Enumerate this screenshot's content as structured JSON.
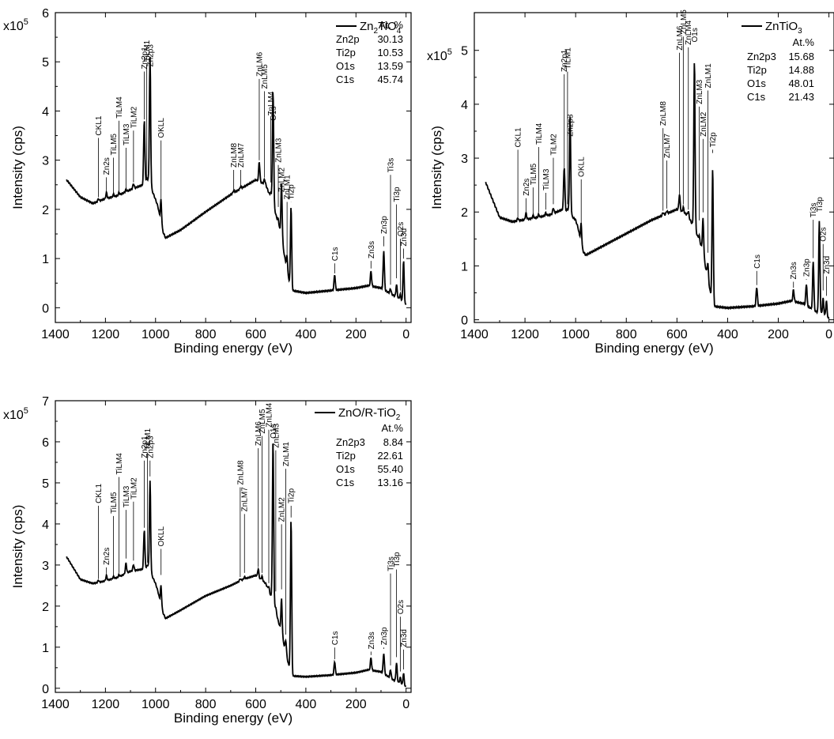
{
  "chart_data": [
    {
      "type": "line",
      "legend": {
        "prefix": "Zn",
        "sub1": "2",
        "mid": "TiO",
        "sub2": "4"
      },
      "xlabel": "Binding energy (eV)",
      "ylabel": "Intensity (cps)",
      "y_multiplier": {
        "base": "x10",
        "exp": "5"
      },
      "xlim": [
        1400,
        -20
      ],
      "ylim": [
        -0.3,
        6
      ],
      "x_ticks": [
        1400,
        1200,
        1000,
        800,
        600,
        400,
        200,
        0
      ],
      "y_ticks": [
        0,
        1,
        2,
        3,
        4,
        5,
        6
      ],
      "composition": {
        "header": "At. %",
        "rows": [
          {
            "element": "Zn2p",
            "value": "30.13"
          },
          {
            "element": "Ti2p",
            "value": "10.53"
          },
          {
            "element": "O1s",
            "value": "13.59"
          },
          {
            "element": "C1s",
            "value": "45.74"
          }
        ]
      },
      "baseline": [
        [
          1355,
          2.6
        ],
        [
          1300,
          2.25
        ],
        [
          1250,
          2.12
        ],
        [
          1210,
          2.2
        ],
        [
          1150,
          2.28
        ],
        [
          1100,
          2.4
        ],
        [
          1050,
          2.5
        ],
        [
          1030,
          2.6
        ],
        [
          1000,
          2.2
        ],
        [
          990,
          2.05
        ],
        [
          975,
          1.6
        ],
        [
          960,
          1.42
        ],
        [
          900,
          1.58
        ],
        [
          800,
          1.95
        ],
        [
          700,
          2.3
        ],
        [
          650,
          2.45
        ],
        [
          600,
          2.6
        ],
        [
          560,
          2.5
        ],
        [
          530,
          2.1
        ],
        [
          500,
          1.5
        ],
        [
          470,
          0.6
        ],
        [
          455,
          0.35
        ],
        [
          400,
          0.3
        ],
        [
          300,
          0.35
        ],
        [
          200,
          0.4
        ],
        [
          150,
          0.45
        ],
        [
          100,
          0.4
        ],
        [
          50,
          0.25
        ],
        [
          25,
          0.18
        ],
        [
          10,
          0.1
        ],
        [
          0,
          0.05
        ]
      ],
      "peaks": [
        {
          "name": "CKL1",
          "x": 1228,
          "top": 2.2,
          "h": 0.05,
          "label_y": 3.5
        },
        {
          "name": "Zn2s",
          "x": 1196,
          "top": 2.35,
          "h": 0.12,
          "label_y": 2.7
        },
        {
          "name": "TiLM5",
          "x": 1168,
          "top": 2.25,
          "h": 0.05,
          "label_y": 3.1
        },
        {
          "name": "TiLM4",
          "x": 1146,
          "top": 2.3,
          "h": 0.05,
          "label_y": 3.85
        },
        {
          "name": "TiLM3",
          "x": 1118,
          "top": 2.35,
          "h": 0.05,
          "label_y": 3.3
        },
        {
          "name": "TiLM2",
          "x": 1088,
          "top": 2.5,
          "h": 0.1,
          "label_y": 3.65
        },
        {
          "name": "Zn2p1",
          "x": 1045,
          "top": 3.78,
          "h": 1.3,
          "label_y": 4.85
        },
        {
          "name": "TiLM1",
          "x": 1035,
          "top": 2.55,
          "h": 0.05,
          "label_y": 5.0
        },
        {
          "name": "Zn2p3",
          "x": 1022,
          "top": 5.18,
          "h": 2.6,
          "label_y": 4.9
        },
        {
          "name": "OKLL",
          "x": 978,
          "top": 2.1,
          "h": 0.5,
          "label_y": 3.45
        },
        {
          "name": "ZnLM8",
          "x": 688,
          "top": 2.35,
          "h": 0.05,
          "label_y": 2.85
        },
        {
          "name": "ZnLM7",
          "x": 660,
          "top": 2.42,
          "h": 0.05,
          "label_y": 2.85
        },
        {
          "name": "ZnLM6",
          "x": 586,
          "top": 2.95,
          "h": 0.4,
          "label_y": 4.7
        },
        {
          "name": "ZnLM5",
          "x": 565,
          "top": 2.6,
          "h": 0.1,
          "label_y": 4.45
        },
        {
          "name": "ZnLM4",
          "x": 540,
          "top": 2.5,
          "h": 0.1,
          "label_y": 3.9
        },
        {
          "name": "O1s",
          "x": 531,
          "top": 4.58,
          "h": 2.3,
          "label_y": 3.8
        },
        {
          "name": "ZnLM3",
          "x": 510,
          "top": 2.0,
          "h": 0.1,
          "label_y": 2.95
        },
        {
          "name": "ZnLM2",
          "x": 497,
          "top": 2.7,
          "h": 1.1,
          "label_y": 2.35
        },
        {
          "name": "ZnLM1",
          "x": 475,
          "top": 1.0,
          "h": 0.3,
          "label_y": 2.2
        },
        {
          "name": "Ti2p",
          "x": 459,
          "top": 2.1,
          "h": 1.65,
          "label_y": 2.2
        },
        {
          "name": "C1s",
          "x": 285,
          "top": 0.65,
          "h": 0.32,
          "label_y": 0.95
        },
        {
          "name": "Zn3s",
          "x": 140,
          "top": 0.75,
          "h": 0.3,
          "label_y": 1.0
        },
        {
          "name": "Zn3p",
          "x": 89,
          "top": 1.2,
          "h": 0.8,
          "label_y": 1.5
        },
        {
          "name": "Ti3s",
          "x": 62,
          "top": 0.42,
          "h": 0.1,
          "label_y": 2.75
        },
        {
          "name": "Ti3p",
          "x": 38,
          "top": 0.55,
          "h": 0.25,
          "label_y": 2.15
        },
        {
          "name": "O2s",
          "x": 23,
          "top": 0.3,
          "h": 0.1,
          "label_y": 1.45
        },
        {
          "name": "Zn3d",
          "x": 10,
          "top": 0.95,
          "h": 0.85,
          "label_y": 1.25
        }
      ]
    },
    {
      "type": "line",
      "legend": {
        "prefix": "",
        "sub1": "",
        "mid": "ZnTiO",
        "sub2": "3"
      },
      "xlabel": "Binding energy (eV)",
      "ylabel": "Intensity (cps)",
      "y_multiplier": {
        "base": "x10",
        "exp": "5"
      },
      "xlim": [
        1400,
        -20
      ],
      "ylim": [
        -0.05,
        5.7
      ],
      "x_ticks": [
        1400,
        1200,
        1000,
        800,
        600,
        400,
        200,
        0
      ],
      "y_ticks": [
        0,
        1,
        2,
        3,
        4,
        5
      ],
      "composition": {
        "header": "At.%",
        "rows": [
          {
            "element": "Zn2p3",
            "value": "15.68"
          },
          {
            "element": "Ti2p",
            "value": "14.88"
          },
          {
            "element": "O1s",
            "value": "48.01"
          },
          {
            "element": "C1s",
            "value": "21.43"
          }
        ]
      },
      "baseline": [
        [
          1355,
          2.55
        ],
        [
          1300,
          1.9
        ],
        [
          1250,
          1.82
        ],
        [
          1210,
          1.85
        ],
        [
          1150,
          1.9
        ],
        [
          1100,
          1.95
        ],
        [
          1050,
          2.05
        ],
        [
          1030,
          2.0
        ],
        [
          1000,
          1.85
        ],
        [
          990,
          1.7
        ],
        [
          975,
          1.3
        ],
        [
          960,
          1.2
        ],
        [
          900,
          1.35
        ],
        [
          800,
          1.6
        ],
        [
          700,
          1.85
        ],
        [
          650,
          1.95
        ],
        [
          600,
          2.05
        ],
        [
          560,
          1.95
        ],
        [
          530,
          1.7
        ],
        [
          500,
          1.3
        ],
        [
          470,
          0.55
        ],
        [
          455,
          0.25
        ],
        [
          400,
          0.22
        ],
        [
          300,
          0.25
        ],
        [
          200,
          0.3
        ],
        [
          150,
          0.35
        ],
        [
          100,
          0.3
        ],
        [
          50,
          0.15
        ],
        [
          25,
          0.1
        ],
        [
          10,
          0.05
        ],
        [
          0,
          0.02
        ]
      ],
      "peaks": [
        {
          "name": "CKL1",
          "x": 1228,
          "top": 1.85,
          "h": 0.05,
          "label_y": 3.2
        },
        {
          "name": "Zn2s",
          "x": 1196,
          "top": 1.95,
          "h": 0.12,
          "label_y": 2.3
        },
        {
          "name": "TiLM5",
          "x": 1168,
          "top": 1.9,
          "h": 0.05,
          "label_y": 2.5
        },
        {
          "name": "TiLM4",
          "x": 1146,
          "top": 1.95,
          "h": 0.05,
          "label_y": 3.25
        },
        {
          "name": "TiLM3",
          "x": 1118,
          "top": 2.0,
          "h": 0.05,
          "label_y": 2.4
        },
        {
          "name": "TiLM2",
          "x": 1088,
          "top": 2.1,
          "h": 0.1,
          "label_y": 3.05
        },
        {
          "name": "Zn2p1",
          "x": 1045,
          "top": 2.75,
          "h": 0.8,
          "label_y": 4.6
        },
        {
          "name": "TiLM1",
          "x": 1032,
          "top": 2.1,
          "h": 0.05,
          "label_y": 4.65
        },
        {
          "name": "Zn2p3",
          "x": 1022,
          "top": 3.75,
          "h": 1.8,
          "label_y": 3.4
        },
        {
          "name": "OKLL",
          "x": 978,
          "top": 1.75,
          "h": 0.4,
          "label_y": 2.65
        },
        {
          "name": "ZnLM8",
          "x": 655,
          "top": 1.98,
          "h": 0.05,
          "label_y": 3.6
        },
        {
          "name": "ZnLM7",
          "x": 640,
          "top": 2.02,
          "h": 0.05,
          "label_y": 3.0
        },
        {
          "name": "ZnLM6",
          "x": 590,
          "top": 2.25,
          "h": 0.3,
          "label_y": 5.0
        },
        {
          "name": "ZnLM5",
          "x": 575,
          "top": 2.1,
          "h": 0.1,
          "label_y": 5.3
        },
        {
          "name": "ZnLM4",
          "x": 555,
          "top": 2.0,
          "h": 0.1,
          "label_y": 5.1
        },
        {
          "name": "O1s",
          "x": 531,
          "top": 5.15,
          "h": 3.1,
          "label_y": 5.15
        },
        {
          "name": "ZnLM3",
          "x": 512,
          "top": 1.8,
          "h": 0.1,
          "label_y": 4.0
        },
        {
          "name": "ZnLM2",
          "x": 497,
          "top": 1.95,
          "h": 0.65,
          "label_y": 3.4
        },
        {
          "name": "ZnLM1",
          "x": 478,
          "top": 1.2,
          "h": 0.3,
          "label_y": 4.3
        },
        {
          "name": "Ti2p",
          "x": 459,
          "top": 3.05,
          "h": 2.5,
          "label_y": 3.2
        },
        {
          "name": "C1s",
          "x": 285,
          "top": 0.6,
          "h": 0.35,
          "label_y": 0.95
        },
        {
          "name": "Zn3s",
          "x": 140,
          "top": 0.55,
          "h": 0.22,
          "label_y": 0.75
        },
        {
          "name": "Zn3p",
          "x": 89,
          "top": 0.7,
          "h": 0.4,
          "label_y": 0.8
        },
        {
          "name": "Ti3s",
          "x": 62,
          "top": 1.1,
          "h": 0.9,
          "label_y": 1.9
        },
        {
          "name": "Ti3p",
          "x": 38,
          "top": 1.95,
          "h": 1.7,
          "label_y": 2.0
        },
        {
          "name": "O2s",
          "x": 23,
          "top": 0.5,
          "h": 0.3,
          "label_y": 1.45
        },
        {
          "name": "Zn3d",
          "x": 10,
          "top": 0.4,
          "h": 0.3,
          "label_y": 0.85
        }
      ]
    },
    {
      "type": "line",
      "legend": {
        "prefix": "",
        "sub1": "",
        "mid": "ZnO/R-TiO",
        "sub2": "2"
      },
      "xlabel": "Binding energy (eV)",
      "ylabel": "Intensity (cps)",
      "y_multiplier": {
        "base": "x10",
        "exp": "5"
      },
      "xlim": [
        1400,
        -20
      ],
      "ylim": [
        -0.1,
        7
      ],
      "x_ticks": [
        1400,
        1200,
        1000,
        800,
        600,
        400,
        200,
        0
      ],
      "y_ticks": [
        0,
        1,
        2,
        3,
        4,
        5,
        6,
        7
      ],
      "composition": {
        "header": "At.%",
        "rows": [
          {
            "element": "Zn2p3",
            "value": "8.84"
          },
          {
            "element": "Ti2p",
            "value": "22.61"
          },
          {
            "element": "O1s",
            "value": "55.40"
          },
          {
            "element": "C1s",
            "value": "13.16"
          }
        ]
      },
      "baseline": [
        [
          1355,
          3.2
        ],
        [
          1300,
          2.65
        ],
        [
          1250,
          2.55
        ],
        [
          1210,
          2.6
        ],
        [
          1150,
          2.7
        ],
        [
          1100,
          2.85
        ],
        [
          1050,
          2.9
        ],
        [
          1030,
          2.95
        ],
        [
          1000,
          2.55
        ],
        [
          990,
          2.35
        ],
        [
          975,
          1.9
        ],
        [
          960,
          1.7
        ],
        [
          900,
          1.9
        ],
        [
          800,
          2.25
        ],
        [
          700,
          2.5
        ],
        [
          650,
          2.65
        ],
        [
          600,
          2.75
        ],
        [
          560,
          2.55
        ],
        [
          530,
          2.1
        ],
        [
          500,
          1.4
        ],
        [
          470,
          0.6
        ],
        [
          455,
          0.3
        ],
        [
          400,
          0.28
        ],
        [
          300,
          0.32
        ],
        [
          200,
          0.38
        ],
        [
          150,
          0.45
        ],
        [
          100,
          0.4
        ],
        [
          50,
          0.2
        ],
        [
          25,
          0.12
        ],
        [
          10,
          0.06
        ],
        [
          0,
          0.03
        ]
      ],
      "peaks": [
        {
          "name": "CKL1",
          "x": 1228,
          "top": 2.6,
          "h": 0.05,
          "label_y": 4.5
        },
        {
          "name": "Zn2s",
          "x": 1196,
          "top": 2.75,
          "h": 0.12,
          "label_y": 3.0
        },
        {
          "name": "TiLM5",
          "x": 1168,
          "top": 2.65,
          "h": 0.05,
          "label_y": 4.25
        },
        {
          "name": "TiLM4",
          "x": 1146,
          "top": 2.75,
          "h": 0.05,
          "label_y": 5.2
        },
        {
          "name": "TiLM3",
          "x": 1118,
          "top": 3.1,
          "h": 0.25,
          "label_y": 4.4
        },
        {
          "name": "TiLM2",
          "x": 1088,
          "top": 3.05,
          "h": 0.15,
          "label_y": 4.6
        },
        {
          "name": "Zn2p1",
          "x": 1045,
          "top": 3.85,
          "h": 0.95,
          "label_y": 5.6
        },
        {
          "name": "TiLM1",
          "x": 1032,
          "top": 3.0,
          "h": 0.05,
          "label_y": 5.8
        },
        {
          "name": "Zn2p3",
          "x": 1022,
          "top": 5.1,
          "h": 2.2,
          "label_y": 5.6
        },
        {
          "name": "OKLL",
          "x": 978,
          "top": 2.7,
          "h": 0.5,
          "label_y": 3.45
        },
        {
          "name": "ZnLM8",
          "x": 662,
          "top": 2.65,
          "h": 0.05,
          "label_y": 4.95
        },
        {
          "name": "ZnLM7",
          "x": 645,
          "top": 2.75,
          "h": 0.05,
          "label_y": 4.3
        },
        {
          "name": "ZnLM6",
          "x": 590,
          "top": 2.9,
          "h": 0.2,
          "label_y": 5.9
        },
        {
          "name": "ZnLM5",
          "x": 575,
          "top": 2.75,
          "h": 0.1,
          "label_y": 6.2
        },
        {
          "name": "ZnLM4",
          "x": 548,
          "top": 2.5,
          "h": 0.1,
          "label_y": 6.35
        },
        {
          "name": "O1s",
          "x": 531,
          "top": 6.08,
          "h": 3.9,
          "label_y": 6.08
        },
        {
          "name": "ZnLM3",
          "x": 520,
          "top": 2.3,
          "h": 0.1,
          "label_y": 5.85
        },
        {
          "name": "ZnLM2",
          "x": 497,
          "top": 2.35,
          "h": 0.85,
          "label_y": 4.05
        },
        {
          "name": "ZnLM1",
          "x": 480,
          "top": 1.25,
          "h": 0.3,
          "label_y": 5.4
        },
        {
          "name": "Ti2p",
          "x": 459,
          "top": 4.1,
          "h": 3.75,
          "label_y": 4.5
        },
        {
          "name": "C1s",
          "x": 285,
          "top": 0.65,
          "h": 0.32,
          "label_y": 1.05
        },
        {
          "name": "Zn3s",
          "x": 140,
          "top": 0.75,
          "h": 0.3,
          "label_y": 0.95
        },
        {
          "name": "Zn3p",
          "x": 89,
          "top": 0.9,
          "h": 0.5,
          "label_y": 1.05
        },
        {
          "name": "Ti3s",
          "x": 62,
          "top": 0.5,
          "h": 0.2,
          "label_y": 2.85
        },
        {
          "name": "Ti3p",
          "x": 38,
          "top": 0.7,
          "h": 0.45,
          "label_y": 2.95
        },
        {
          "name": "O2s",
          "x": 23,
          "top": 0.35,
          "h": 0.15,
          "label_y": 1.8
        },
        {
          "name": "Zn3d",
          "x": 10,
          "top": 0.4,
          "h": 0.3,
          "label_y": 1.0
        }
      ]
    }
  ]
}
